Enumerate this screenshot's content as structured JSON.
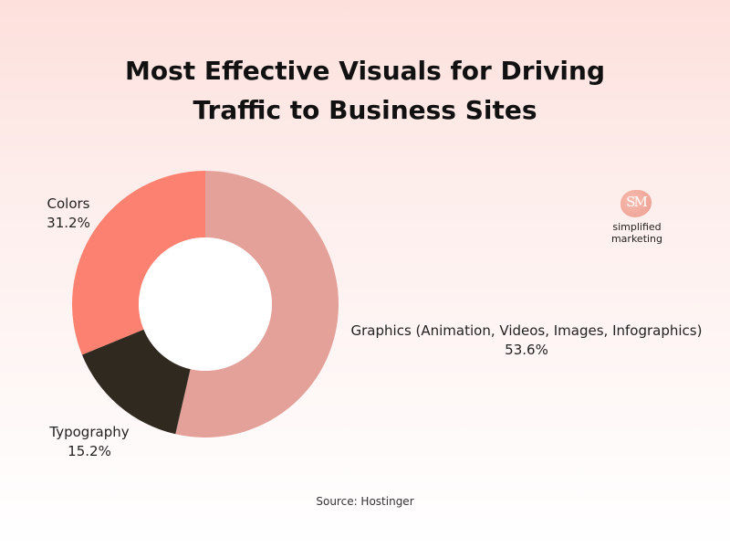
{
  "chart_data": {
    "type": "pie",
    "variant": "donut",
    "title_lines": [
      "Most Effective Visuals for Driving",
      "Traffic to Business Sites"
    ],
    "slices": [
      {
        "label": "Graphics (Animation, Videos, Images, Infographics)",
        "value": 53.6,
        "value_label": "53.6%",
        "color": "#e4a199"
      },
      {
        "label": "Typography",
        "value": 15.2,
        "value_label": "15.2%",
        "color": "#302920"
      },
      {
        "label": "Colors",
        "value": 31.2,
        "value_label": "31.2%",
        "color": "#fd8170"
      }
    ],
    "start": "top",
    "direction": "clockwise",
    "legend": "none",
    "source": "Source: Hostinger"
  },
  "branding": {
    "logo_mark": "SM",
    "logo_text": "simplified marketing"
  }
}
